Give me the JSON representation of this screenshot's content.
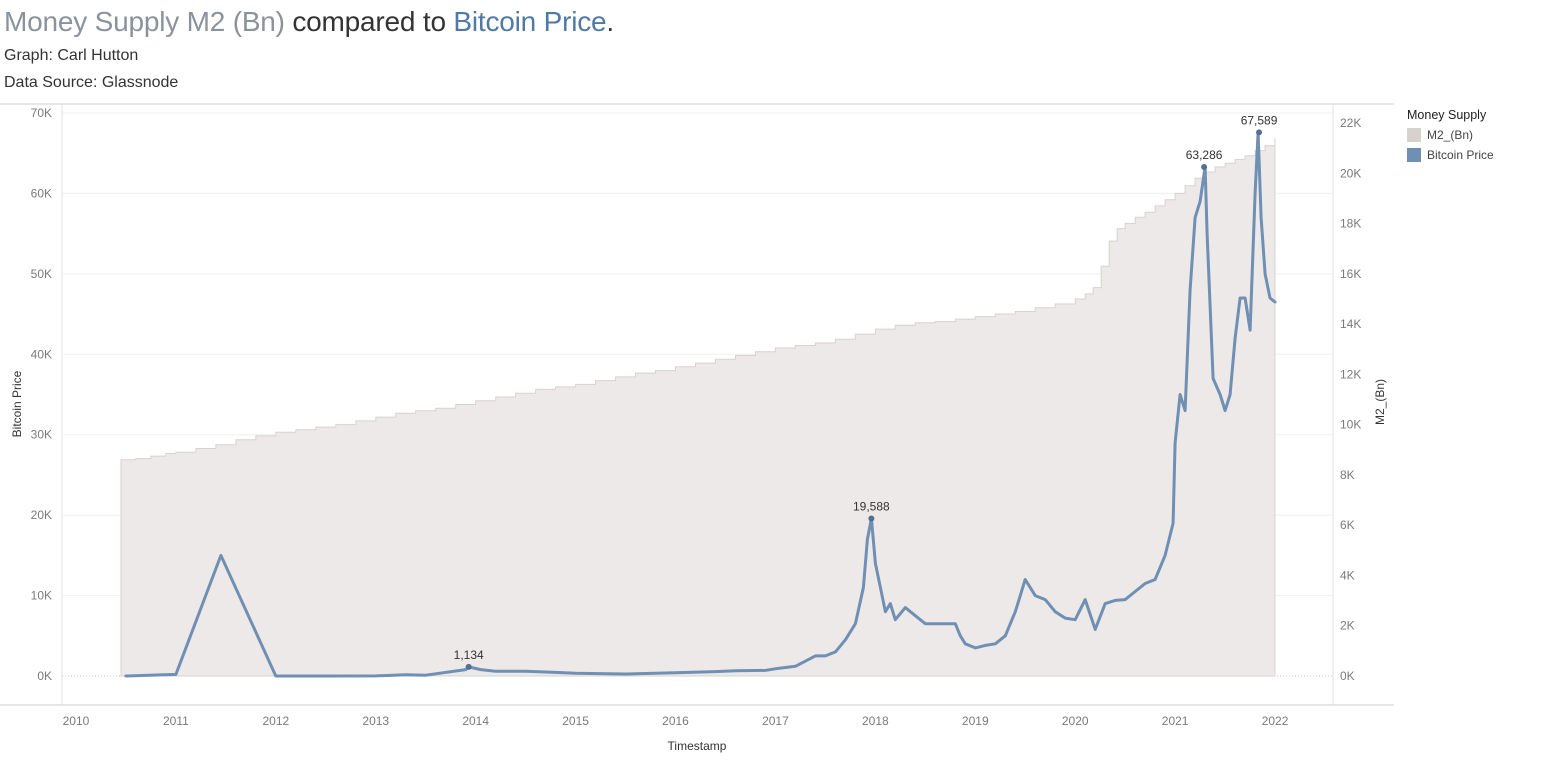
{
  "header": {
    "title_part1": "Money Supply M2 (Bn)",
    "title_part2": " compared to ",
    "title_part3": "Bitcoin Price",
    "title_part4": ".",
    "subtitle1": "Graph: Carl Hutton",
    "subtitle2": "Data Source: Glassnode"
  },
  "legend": {
    "title": "Money Supply",
    "items": [
      {
        "label": "M2_(Bn)",
        "color": "#d8d2cf"
      },
      {
        "label": "Bitcoin Price",
        "color": "#6f8fb3"
      }
    ]
  },
  "chart_data": {
    "type": "line",
    "xlabel": "Timestamp",
    "ylabel_left": "Bitcoin Price",
    "ylabel_right": "M2_(Bn)",
    "x_ticks": [
      "2010",
      "2011",
      "2012",
      "2013",
      "2014",
      "2015",
      "2016",
      "2017",
      "2018",
      "2019",
      "2020",
      "2021",
      "2022"
    ],
    "y_left_ticks": [
      "0K",
      "10K",
      "20K",
      "30K",
      "40K",
      "50K",
      "60K",
      "70K"
    ],
    "y_right_ticks": [
      "0K",
      "2K",
      "4K",
      "6K",
      "8K",
      "10K",
      "12K",
      "14K",
      "16K",
      "18K",
      "20K",
      "22K"
    ],
    "y_left_lim": [
      0,
      70000
    ],
    "y_right_lim": [
      0,
      22000
    ],
    "x_lim": [
      2009.86,
      2022.58
    ],
    "grid": true,
    "legend_position": "right",
    "colors": {
      "m2_fill": "#ede9e8",
      "m2_edge": "#d8d2cf",
      "btc_line": "#6f8fb3"
    },
    "series": [
      {
        "name": "M2_(Bn)",
        "axis": "right",
        "style": "step-area",
        "x": [
          2010.45,
          2010.6,
          2010.75,
          2010.9,
          2011.0,
          2011.2,
          2011.4,
          2011.6,
          2011.8,
          2012.0,
          2012.2,
          2012.4,
          2012.6,
          2012.8,
          2013.0,
          2013.2,
          2013.4,
          2013.6,
          2013.8,
          2014.0,
          2014.2,
          2014.4,
          2014.6,
          2014.8,
          2015.0,
          2015.2,
          2015.4,
          2015.6,
          2015.8,
          2016.0,
          2016.2,
          2016.4,
          2016.6,
          2016.8,
          2017.0,
          2017.2,
          2017.4,
          2017.6,
          2017.8,
          2018.0,
          2018.2,
          2018.4,
          2018.6,
          2018.8,
          2019.0,
          2019.2,
          2019.4,
          2019.6,
          2019.8,
          2020.0,
          2020.1,
          2020.18,
          2020.26,
          2020.34,
          2020.42,
          2020.5,
          2020.6,
          2020.7,
          2020.8,
          2020.9,
          2021.0,
          2021.1,
          2021.2,
          2021.3,
          2021.4,
          2021.5,
          2021.6,
          2021.7,
          2021.8,
          2021.9,
          2022.0
        ],
        "values": [
          8600,
          8650,
          8750,
          8850,
          8900,
          9050,
          9200,
          9400,
          9550,
          9700,
          9800,
          9900,
          10000,
          10150,
          10300,
          10450,
          10550,
          10650,
          10800,
          10950,
          11100,
          11250,
          11400,
          11500,
          11600,
          11750,
          11900,
          12050,
          12150,
          12300,
          12450,
          12600,
          12750,
          12900,
          13050,
          13150,
          13250,
          13400,
          13600,
          13800,
          13950,
          14050,
          14100,
          14200,
          14300,
          14400,
          14500,
          14650,
          14800,
          15000,
          15200,
          15450,
          16300,
          17300,
          17800,
          18000,
          18250,
          18450,
          18700,
          18950,
          19200,
          19500,
          19800,
          20050,
          20250,
          20400,
          20550,
          20700,
          20900,
          21100,
          21400
        ]
      },
      {
        "name": "Bitcoin Price",
        "axis": "left",
        "style": "line",
        "x": [
          2010.5,
          2011.0,
          2011.45,
          2012.0,
          2012.5,
          2013.0,
          2013.3,
          2013.5,
          2013.9,
          2013.93,
          2014.05,
          2014.2,
          2014.5,
          2014.8,
          2015.0,
          2015.5,
          2016.0,
          2016.4,
          2016.6,
          2016.9,
          2017.0,
          2017.2,
          2017.4,
          2017.5,
          2017.6,
          2017.7,
          2017.8,
          2017.88,
          2017.92,
          2017.96,
          2018.0,
          2018.05,
          2018.1,
          2018.15,
          2018.2,
          2018.3,
          2018.4,
          2018.5,
          2018.6,
          2018.7,
          2018.8,
          2018.85,
          2018.9,
          2019.0,
          2019.1,
          2019.2,
          2019.3,
          2019.4,
          2019.5,
          2019.6,
          2019.7,
          2019.8,
          2019.9,
          2020.0,
          2020.1,
          2020.2,
          2020.3,
          2020.4,
          2020.5,
          2020.6,
          2020.7,
          2020.8,
          2020.9,
          2020.98,
          2021.0,
          2021.05,
          2021.1,
          2021.15,
          2021.2,
          2021.25,
          2021.3,
          2021.32,
          2021.38,
          2021.45,
          2021.5,
          2021.55,
          2021.6,
          2021.65,
          2021.7,
          2021.75,
          2021.8,
          2021.83,
          2021.86,
          2021.9,
          2021.95,
          2022.0
        ],
        "values": [
          0,
          200,
          15000,
          5,
          6,
          15,
          150,
          100,
          800,
          1134,
          800,
          600,
          600,
          450,
          350,
          250,
          400,
          550,
          650,
          700,
          900,
          1200,
          2500,
          2500,
          3000,
          4500,
          6500,
          11000,
          17000,
          19588,
          14000,
          11000,
          8000,
          9000,
          7000,
          8500,
          7500,
          6500,
          6500,
          6500,
          6500,
          5000,
          4000,
          3500,
          3800,
          4000,
          5000,
          8000,
          12000,
          10000,
          9500,
          8000,
          7200,
          7000,
          9500,
          5800,
          9000,
          9400,
          9500,
          10500,
          11500,
          12000,
          15000,
          19000,
          29000,
          35000,
          33000,
          48000,
          57000,
          59000,
          63286,
          55000,
          37000,
          35000,
          33000,
          35000,
          42000,
          47000,
          47000,
          43000,
          60000,
          67589,
          57000,
          50000,
          47000,
          46500
        ]
      }
    ],
    "annotations": [
      {
        "label": "1,134",
        "x": 2013.93,
        "y": 1134
      },
      {
        "label": "19,588",
        "x": 2017.96,
        "y": 19588
      },
      {
        "label": "63,286",
        "x": 2021.29,
        "y": 63286
      },
      {
        "label": "67,589",
        "x": 2021.84,
        "y": 67589
      }
    ]
  }
}
